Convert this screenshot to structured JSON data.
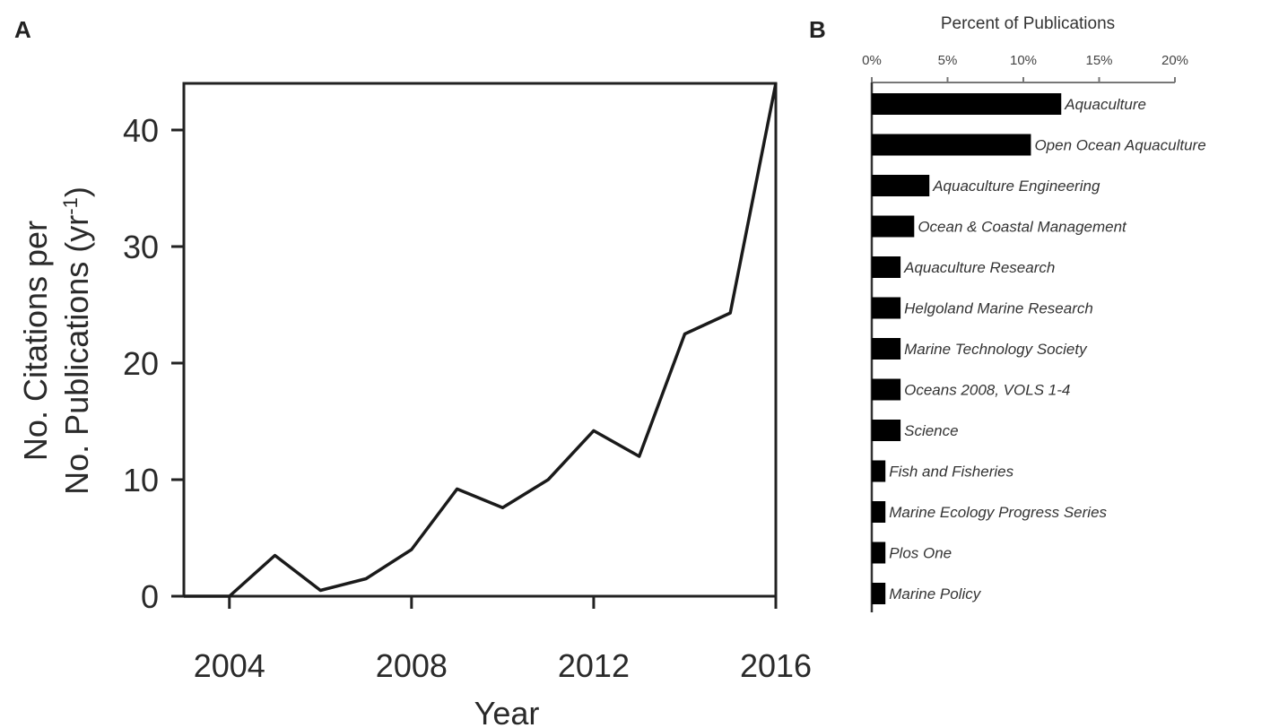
{
  "chart_data": [
    {
      "panel": "A",
      "type": "line",
      "xlabel": "Year",
      "ylabel_line1": "No. Citations per",
      "ylabel_line2": "No. Publications (yr",
      "ylabel_sup": "-1",
      "ylabel_close": ")",
      "xlim": [
        2003,
        2016
      ],
      "ylim": [
        0,
        44
      ],
      "xticks": [
        2004,
        2008,
        2012,
        2016
      ],
      "yticks": [
        0,
        10,
        20,
        30,
        40
      ],
      "grid": false,
      "series": [
        {
          "x": [
            2003,
            2004,
            2005,
            2006,
            2007,
            2008,
            2009,
            2010,
            2011,
            2012,
            2013,
            2014,
            2015,
            2016
          ],
          "y": [
            0,
            0,
            3.5,
            0.5,
            1.5,
            4,
            9.2,
            7.6,
            10,
            14.2,
            12,
            22.5,
            24.3,
            44
          ]
        }
      ]
    },
    {
      "panel": "B",
      "type": "bar",
      "orientation": "horizontal",
      "title": "Percent of Publications",
      "xlim": [
        0,
        20
      ],
      "xticks": [
        0,
        5,
        10,
        15,
        20
      ],
      "xtick_labels": [
        "0%",
        "5%",
        "10%",
        "15%",
        "20%"
      ],
      "categories": [
        "Aquaculture",
        "Open Ocean Aquaculture",
        "Aquaculture Engineering",
        "Ocean & Coastal Management",
        "Aquaculture Research",
        "Helgoland Marine Research",
        "Marine Technology Society",
        "Oceans 2008, VOLS 1-4",
        "Science",
        "Fish and Fisheries",
        "Marine Ecology Progress Series",
        "Plos One",
        "Marine Policy"
      ],
      "values": [
        12.5,
        10.5,
        3.8,
        2.8,
        1.9,
        1.9,
        1.9,
        1.9,
        1.9,
        0.9,
        0.9,
        0.9,
        0.9
      ],
      "bar_color": "#000000"
    }
  ],
  "panels": {
    "a_label": "A",
    "b_label": "B"
  },
  "colors": {
    "line": "#1a1a1a",
    "axis": "#222222",
    "bar": "#000000"
  }
}
